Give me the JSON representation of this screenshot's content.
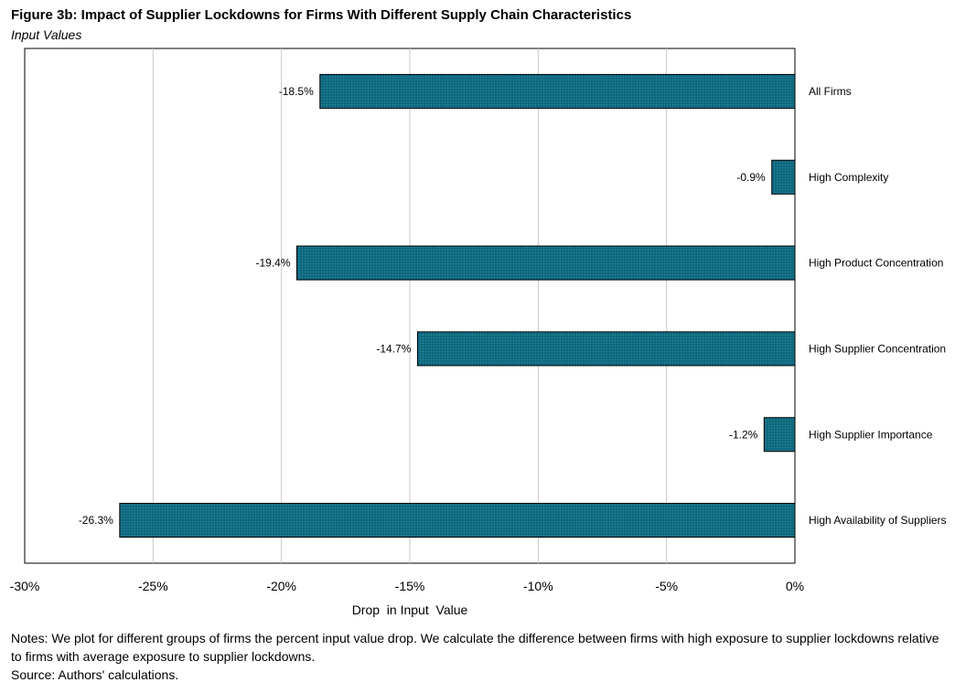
{
  "figure": {
    "title": "Figure 3b: Impact of Supplier Lockdowns for Firms With Different Supply Chain Characteristics",
    "subtitle": "Input Values"
  },
  "chart_data": {
    "type": "bar",
    "orientation": "horizontal",
    "categories": [
      "All Firms",
      "High Complexity",
      "High Product Concentration",
      "High Supplier Concentration",
      "High Supplier Importance",
      "High Availability of Suppliers"
    ],
    "values": [
      -18.5,
      -0.9,
      -19.4,
      -14.7,
      -1.2,
      -26.3
    ],
    "data_labels": [
      "-18.5%",
      "-0.9%",
      "-19.4%",
      "-14.7%",
      "-1.2%",
      "-26.3%"
    ],
    "xlabel": "Drop  in Input  Value",
    "ylabel": "",
    "xlim": [
      -30,
      0
    ],
    "xticks": [
      -30,
      -25,
      -20,
      -15,
      -10,
      -5,
      0
    ],
    "xtick_labels": [
      "-30%",
      "-25%",
      "-20%",
      "-15%",
      "-10%",
      "-5%",
      "0%"
    ],
    "grid": true,
    "bar_color": "#0e6a80"
  },
  "notes": {
    "line1": "Notes: We plot for different groups of firms the percent input value drop. We calculate the difference between firms with high exposure to supplier lockdowns relative to firms with average exposure to supplier lockdowns.",
    "source": "Source: Authors' calculations."
  }
}
